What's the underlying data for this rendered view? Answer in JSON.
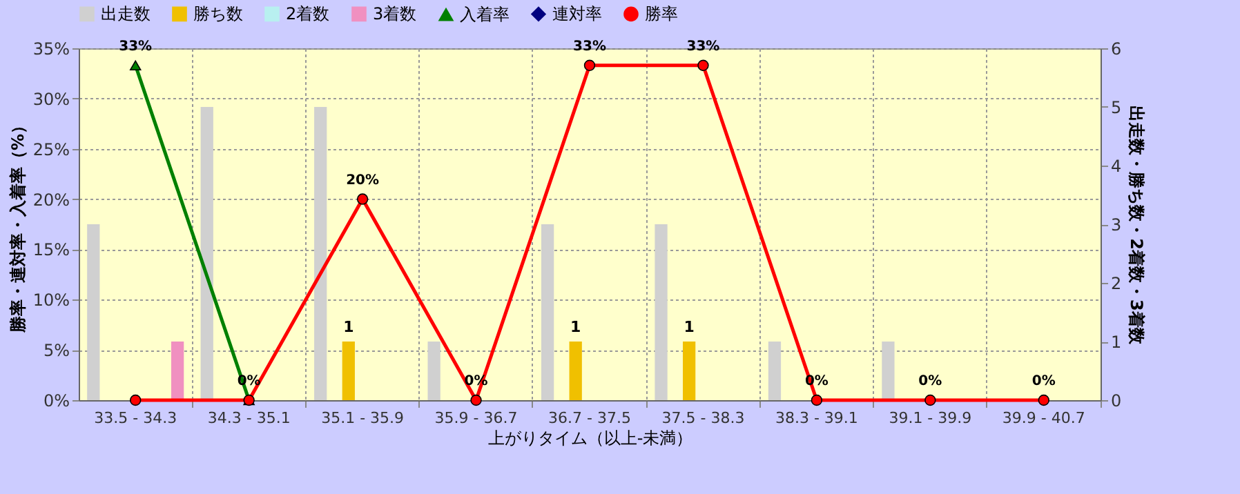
{
  "chart_data": {
    "type": "bar",
    "xlabel": "上がりタイム（以上-未満）",
    "ylabel": "勝率・連対率・入着率（%）",
    "y2label": "出走数・勝ち数・2着数・3着数",
    "categories": [
      "33.5 - 34.3",
      "34.3 - 35.1",
      "35.1 - 35.9",
      "35.9 - 36.7",
      "36.7 - 37.5",
      "37.5 - 38.3",
      "38.3 - 39.1",
      "39.1 - 39.9",
      "39.9 - 40.7"
    ],
    "series": [
      {
        "name": "出走数",
        "axis": "y2",
        "color": "#d0d0d0",
        "values": [
          3,
          5,
          5,
          1,
          3,
          3,
          1,
          1,
          0
        ]
      },
      {
        "name": "勝ち数",
        "axis": "y2",
        "color": "#f0c000",
        "values": [
          0,
          0,
          1,
          0,
          1,
          1,
          0,
          0,
          0
        ],
        "value_labels": [
          null,
          null,
          "1",
          null,
          "1",
          "1",
          null,
          null,
          null
        ]
      },
      {
        "name": "2着数",
        "axis": "y2",
        "color": "#b8f0f0",
        "values": [
          0,
          0,
          0,
          0,
          0,
          0,
          0,
          0,
          0
        ]
      },
      {
        "name": "3着数",
        "axis": "y2",
        "color": "#f090c0",
        "values": [
          1,
          0,
          0,
          0,
          0,
          0,
          0,
          0,
          0
        ]
      },
      {
        "name": "入着率",
        "type": "line",
        "color": "#008000",
        "marker": "triangle",
        "values": [
          33.3,
          0,
          null,
          null,
          null,
          null,
          null,
          null,
          null
        ],
        "value_labels": [
          "33%",
          null,
          null,
          null,
          null,
          null,
          null,
          null,
          null
        ]
      },
      {
        "name": "連対率",
        "type": "line",
        "color": "#000080",
        "marker": "diamond",
        "values": [
          null,
          null,
          null,
          null,
          null,
          null,
          null,
          null,
          null
        ]
      },
      {
        "name": "勝率",
        "type": "line",
        "color": "#ff0000",
        "marker": "circle",
        "values": [
          0,
          0,
          20,
          0,
          33.3,
          33.3,
          0,
          0,
          0
        ],
        "value_labels": [
          null,
          "0%",
          "20%",
          "0%",
          "33%",
          "33%",
          "0%",
          "0%",
          "0%"
        ]
      }
    ],
    "ylim": [
      0,
      35
    ],
    "yticks": [
      {
        "value": 0,
        "label": "0%"
      },
      {
        "value": 5,
        "label": "5%"
      },
      {
        "value": 10,
        "label": "10%"
      },
      {
        "value": 15,
        "label": "15%"
      },
      {
        "value": 20,
        "label": "20%"
      },
      {
        "value": 25,
        "label": "25%"
      },
      {
        "value": 30,
        "label": "30%"
      },
      {
        "value": 35,
        "label": "35%"
      }
    ],
    "y2lim": [
      0,
      6
    ],
    "y2ticks": [
      0,
      1,
      2,
      3,
      4,
      5,
      6
    ],
    "grid": true,
    "legend": "top"
  }
}
